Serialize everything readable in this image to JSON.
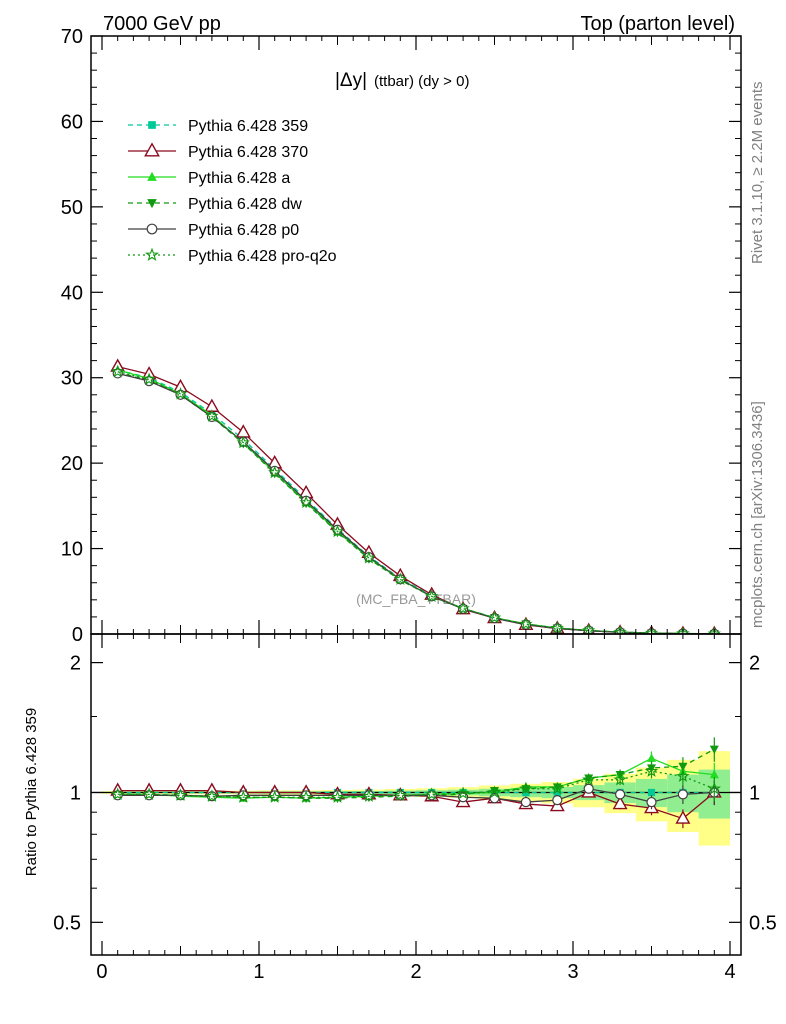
{
  "header": {
    "left": "7000 GeV pp",
    "right": "Top (parton level)"
  },
  "plot_title_main": "|Δy|",
  "plot_title_sub": "(ttbar) (dy > 0)",
  "side_text_top": "Rivet 3.1.10, ≥ 2.2M events",
  "side_text_bottom": "mcplots.cern.ch [arXiv:1306.3436]",
  "watermark": "(MC_FBA_TTBAR)",
  "ratio_ylabel": "Ratio to Pythia 6.428 359",
  "colors": {
    "s359": "#00c897",
    "s370": "#8b0a1e",
    "sa": "#22dd22",
    "sdw": "#119911",
    "sp0": "#404040",
    "sproq2o": "#119911",
    "band_yellow": "#ffff88",
    "band_green": "#90ee90"
  },
  "chart_data": [
    {
      "type": "line",
      "panel": "main",
      "xlim": [
        -0.07,
        4.07
      ],
      "ylim": [
        0,
        70
      ],
      "yticks": [
        0,
        10,
        20,
        30,
        40,
        50,
        60,
        70
      ],
      "ytick_labels": [
        "0",
        "10",
        "20",
        "30",
        "40",
        "50",
        "60",
        "70"
      ],
      "x": [
        0.1,
        0.3,
        0.5,
        0.7,
        0.9,
        1.1,
        1.3,
        1.5,
        1.7,
        1.9,
        2.1,
        2.3,
        2.5,
        2.7,
        2.9,
        3.1,
        3.3,
        3.5,
        3.7,
        3.9
      ],
      "series": [
        {
          "key": "s359",
          "name": "Pythia 6.428 359",
          "marker": "square",
          "dash": "dashed",
          "values": [
            30.9,
            30.0,
            28.3,
            25.8,
            22.8,
            19.3,
            15.8,
            12.3,
            9.1,
            6.5,
            4.5,
            3.0,
            1.9,
            1.15,
            0.68,
            0.38,
            0.2,
            0.1,
            0.05,
            0.02
          ]
        },
        {
          "key": "s370",
          "name": "Pythia 6.428 370",
          "marker": "triangle-open",
          "dash": "solid",
          "values": [
            31.3,
            30.4,
            28.9,
            26.6,
            23.6,
            20.0,
            16.5,
            12.8,
            9.5,
            6.8,
            4.6,
            2.9,
            1.86,
            1.07,
            0.63,
            0.38,
            0.19,
            0.09,
            0.04,
            0.02
          ]
        },
        {
          "key": "sa",
          "name": "Pythia 6.428 a",
          "marker": "triangle",
          "dash": "solid",
          "values": [
            30.9,
            29.9,
            28.1,
            25.6,
            22.4,
            18.9,
            15.4,
            12.0,
            8.9,
            6.4,
            4.4,
            2.98,
            1.9,
            1.18,
            0.7,
            0.41,
            0.22,
            0.12,
            0.06,
            0.025
          ]
        },
        {
          "key": "sdw",
          "name": "Pythia 6.428 dw",
          "marker": "triangle-down",
          "dash": "dashed",
          "values": [
            30.6,
            29.7,
            28.0,
            25.4,
            22.3,
            18.8,
            15.3,
            11.9,
            8.8,
            6.3,
            4.4,
            2.97,
            1.92,
            1.18,
            0.7,
            0.42,
            0.22,
            0.11,
            0.06,
            0.025
          ]
        },
        {
          "key": "sp0",
          "name": "Pythia 6.428 p0",
          "marker": "circle-open",
          "dash": "solid",
          "values": [
            30.5,
            29.6,
            28.0,
            25.4,
            22.5,
            19.1,
            15.6,
            12.2,
            9.0,
            6.4,
            4.4,
            2.95,
            1.85,
            1.1,
            0.65,
            0.39,
            0.2,
            0.09,
            0.05,
            0.02
          ]
        },
        {
          "key": "sproq2o",
          "name": "Pythia 6.428 pro-q2o",
          "marker": "star-open",
          "dash": "dotted",
          "values": [
            30.7,
            29.8,
            28.1,
            25.5,
            22.4,
            18.9,
            15.4,
            12.0,
            8.9,
            6.4,
            4.4,
            2.98,
            1.9,
            1.16,
            0.69,
            0.41,
            0.22,
            0.11,
            0.055,
            0.025
          ]
        }
      ]
    },
    {
      "type": "line",
      "panel": "ratio",
      "xlabel": "",
      "ylabel": "Ratio to Pythia 6.428 359",
      "xlim": [
        -0.07,
        4.07
      ],
      "ylim": [
        0.42,
        2.33
      ],
      "yscale": "log",
      "yticks": [
        0.5,
        1,
        2
      ],
      "ytick_labels": [
        "0.5",
        "1",
        "2"
      ],
      "xticks": [
        0,
        1,
        2,
        3,
        4
      ],
      "xtick_labels": [
        "0",
        "1",
        "2",
        "3",
        "4"
      ],
      "x": [
        0.1,
        0.3,
        0.5,
        0.7,
        0.9,
        1.1,
        1.3,
        1.5,
        1.7,
        1.9,
        2.1,
        2.3,
        2.5,
        2.7,
        2.9,
        3.1,
        3.3,
        3.5,
        3.7,
        3.9
      ],
      "band_halfwidth": [
        0.004,
        0.004,
        0.005,
        0.005,
        0.005,
        0.006,
        0.006,
        0.007,
        0.008,
        0.01,
        0.012,
        0.015,
        0.02,
        0.025,
        0.03,
        0.04,
        0.055,
        0.075,
        0.1,
        0.13
      ],
      "series": [
        {
          "key": "s359",
          "values": [
            1.0,
            1.0,
            1.0,
            1.0,
            1.0,
            1.0,
            1.0,
            1.0,
            1.0,
            1.0,
            1.0,
            1.0,
            1.0,
            1.0,
            1.0,
            1.0,
            1.0,
            1.0,
            1.0,
            1.0
          ]
        },
        {
          "key": "s370",
          "values": [
            1.01,
            1.01,
            1.01,
            1.01,
            1.0,
            1.0,
            1.0,
            0.99,
            0.99,
            0.985,
            0.98,
            0.95,
            0.97,
            0.94,
            0.93,
            1.0,
            0.94,
            0.92,
            0.87,
            1.0
          ]
        },
        {
          "key": "sa",
          "values": [
            0.99,
            0.99,
            0.98,
            0.975,
            0.97,
            0.975,
            0.97,
            0.975,
            0.98,
            0.985,
            0.99,
            0.995,
            1.0,
            1.03,
            1.03,
            1.08,
            1.1,
            1.2,
            1.12,
            1.1
          ]
        },
        {
          "key": "sdw",
          "values": [
            0.99,
            0.99,
            0.985,
            0.98,
            0.975,
            0.975,
            0.97,
            0.97,
            0.975,
            0.98,
            0.985,
            0.99,
            1.01,
            1.02,
            1.03,
            1.08,
            1.1,
            1.14,
            1.15,
            1.26
          ]
        },
        {
          "key": "sp0",
          "values": [
            0.985,
            0.985,
            0.985,
            0.98,
            0.985,
            0.985,
            0.985,
            0.985,
            0.985,
            0.985,
            0.985,
            0.975,
            0.97,
            0.95,
            0.96,
            1.02,
            0.99,
            0.95,
            0.99,
            1.0
          ]
        },
        {
          "key": "sproq2o",
          "values": [
            0.99,
            0.99,
            0.985,
            0.98,
            0.975,
            0.975,
            0.975,
            0.975,
            0.98,
            0.985,
            0.99,
            0.995,
            1.0,
            1.02,
            1.02,
            1.07,
            1.07,
            1.12,
            1.09,
            1.02
          ]
        }
      ]
    }
  ]
}
